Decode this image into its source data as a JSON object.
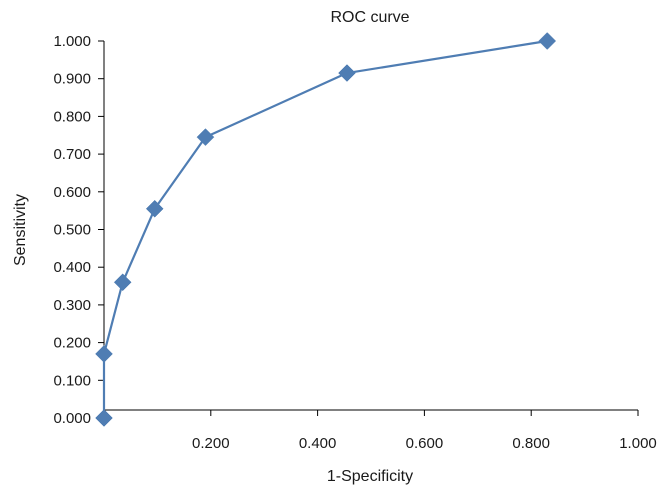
{
  "chart_data": {
    "type": "line",
    "title": "ROC curve",
    "xlabel": "1-Specificity",
    "ylabel": "Sensitivity",
    "xlim": [
      0,
      1.0
    ],
    "ylim": [
      0,
      1.0
    ],
    "x_ticks": [
      {
        "value": 0.2,
        "label": "0.200"
      },
      {
        "value": 0.4,
        "label": "0.400"
      },
      {
        "value": 0.6,
        "label": "0.600"
      },
      {
        "value": 0.8,
        "label": "0.800"
      },
      {
        "value": 1.0,
        "label": "1.000"
      }
    ],
    "y_ticks": [
      {
        "value": 0.0,
        "label": "0.000"
      },
      {
        "value": 0.1,
        "label": "0.100"
      },
      {
        "value": 0.2,
        "label": "0.200"
      },
      {
        "value": 0.3,
        "label": "0.300"
      },
      {
        "value": 0.4,
        "label": "0.400"
      },
      {
        "value": 0.5,
        "label": "0.500"
      },
      {
        "value": 0.6,
        "label": "0.600"
      },
      {
        "value": 0.7,
        "label": "0.700"
      },
      {
        "value": 0.8,
        "label": "0.800"
      },
      {
        "value": 0.9,
        "label": "0.900"
      },
      {
        "value": 1.0,
        "label": "1.000"
      }
    ],
    "grid": false,
    "legend": "none",
    "series": [
      {
        "color": "#4f7db3",
        "marker": "diamond",
        "points": [
          {
            "x": 0.0,
            "y": 0.0
          },
          {
            "x": 0.0,
            "y": 0.17
          },
          {
            "x": 0.035,
            "y": 0.36
          },
          {
            "x": 0.095,
            "y": 0.555
          },
          {
            "x": 0.19,
            "y": 0.745
          },
          {
            "x": 0.455,
            "y": 0.915
          },
          {
            "x": 0.83,
            "y": 1.0
          }
        ]
      }
    ]
  }
}
